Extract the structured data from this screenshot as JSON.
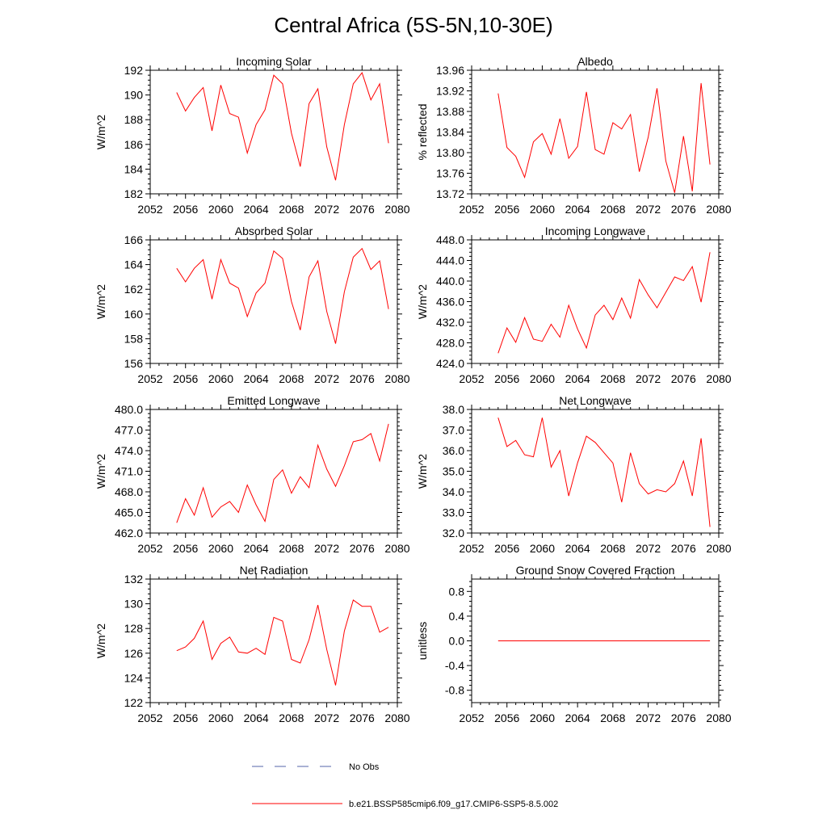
{
  "figure_title": "Central Africa (5S-5N,10-30E)",
  "colors": {
    "model": "#ff0000",
    "obs": "#5566aa",
    "axis": "#000000"
  },
  "legend": [
    {
      "label": "No Obs",
      "style": "dashed",
      "color": "#5566aa"
    },
    {
      "label": "b.e21.BSSP585cmip6.f09_g17.CMIP6-SSP5-8.5.002",
      "style": "solid",
      "color": "#ff0000"
    }
  ],
  "chart_data": [
    {
      "type": "line",
      "title": "Incoming Solar",
      "ylabel": "W/m^2",
      "xlim": [
        2052,
        2080
      ],
      "ylim": [
        182,
        192
      ],
      "xticks": [
        2052,
        2056,
        2060,
        2064,
        2068,
        2072,
        2076,
        2080
      ],
      "yticks": [
        182,
        184,
        186,
        188,
        190,
        192
      ],
      "ytick_labels": [
        "182",
        "184",
        "186",
        "188",
        "190",
        "192"
      ],
      "x": [
        2055,
        2056,
        2057,
        2058,
        2059,
        2060,
        2061,
        2062,
        2063,
        2064,
        2065,
        2066,
        2067,
        2068,
        2069,
        2070,
        2071,
        2072,
        2073,
        2074,
        2075,
        2076,
        2077,
        2078,
        2079
      ],
      "series": [
        {
          "values": [
            190.2,
            188.7,
            189.8,
            190.6,
            187.1,
            190.8,
            188.5,
            188.2,
            185.3,
            187.6,
            188.8,
            191.6,
            190.9,
            186.9,
            184.2,
            189.3,
            190.5,
            185.8,
            183.1,
            187.6,
            190.9,
            191.8,
            189.6,
            190.9,
            186.1
          ]
        }
      ]
    },
    {
      "type": "line",
      "title": "Albedo",
      "ylabel": "% reflected",
      "xlim": [
        2052,
        2080
      ],
      "ylim": [
        13.72,
        13.96
      ],
      "xticks": [
        2052,
        2056,
        2060,
        2064,
        2068,
        2072,
        2076,
        2080
      ],
      "yticks": [
        13.72,
        13.76,
        13.8,
        13.84,
        13.88,
        13.92,
        13.96
      ],
      "ytick_labels": [
        "13.72",
        "13.76",
        "13.80",
        "13.84",
        "13.88",
        "13.92",
        "13.96"
      ],
      "x": [
        2055,
        2056,
        2057,
        2058,
        2059,
        2060,
        2061,
        2062,
        2063,
        2064,
        2065,
        2066,
        2067,
        2068,
        2069,
        2070,
        2071,
        2072,
        2073,
        2074,
        2075,
        2076,
        2077,
        2078,
        2079
      ],
      "series": [
        {
          "values": [
            13.915,
            13.81,
            13.793,
            13.752,
            13.821,
            13.837,
            13.797,
            13.866,
            13.789,
            13.812,
            13.918,
            13.806,
            13.797,
            13.858,
            13.846,
            13.874,
            13.763,
            13.83,
            13.925,
            13.784,
            13.722,
            13.832,
            13.725,
            13.935,
            13.777
          ]
        }
      ]
    },
    {
      "type": "line",
      "title": "Absorbed Solar",
      "ylabel": "W/m^2",
      "xlim": [
        2052,
        2080
      ],
      "ylim": [
        156,
        166
      ],
      "xticks": [
        2052,
        2056,
        2060,
        2064,
        2068,
        2072,
        2076,
        2080
      ],
      "yticks": [
        156,
        158,
        160,
        162,
        164,
        166
      ],
      "ytick_labels": [
        "156",
        "158",
        "160",
        "162",
        "164",
        "166"
      ],
      "x": [
        2055,
        2056,
        2057,
        2058,
        2059,
        2060,
        2061,
        2062,
        2063,
        2064,
        2065,
        2066,
        2067,
        2068,
        2069,
        2070,
        2071,
        2072,
        2073,
        2074,
        2075,
        2076,
        2077,
        2078,
        2079
      ],
      "series": [
        {
          "values": [
            163.7,
            162.6,
            163.7,
            164.4,
            161.2,
            164.4,
            162.5,
            162.1,
            159.8,
            161.7,
            162.5,
            165.1,
            164.5,
            161.0,
            158.7,
            163.0,
            164.3,
            160.2,
            157.6,
            161.8,
            164.6,
            165.3,
            163.6,
            164.3,
            160.4
          ]
        }
      ]
    },
    {
      "type": "line",
      "title": "Incoming Longwave",
      "ylabel": "W/m^2",
      "xlim": [
        2052,
        2080
      ],
      "ylim": [
        424,
        448
      ],
      "xticks": [
        2052,
        2056,
        2060,
        2064,
        2068,
        2072,
        2076,
        2080
      ],
      "yticks": [
        424,
        428,
        432,
        436,
        440,
        444,
        448
      ],
      "ytick_labels": [
        "424.0",
        "428.0",
        "432.0",
        "436.0",
        "440.0",
        "444.0",
        "448.0"
      ],
      "x": [
        2055,
        2056,
        2057,
        2058,
        2059,
        2060,
        2061,
        2062,
        2063,
        2064,
        2065,
        2066,
        2067,
        2068,
        2069,
        2070,
        2071,
        2072,
        2073,
        2074,
        2075,
        2076,
        2077,
        2078,
        2079
      ],
      "series": [
        {
          "values": [
            426.0,
            430.9,
            428.1,
            432.9,
            428.7,
            428.3,
            431.6,
            429.1,
            435.3,
            430.7,
            427.0,
            433.4,
            435.3,
            432.5,
            436.7,
            432.8,
            440.3,
            437.3,
            434.8,
            437.8,
            440.8,
            440.1,
            442.8,
            435.9,
            445.6
          ]
        }
      ]
    },
    {
      "type": "line",
      "title": "Emitted Longwave",
      "ylabel": "W/m^2",
      "xlim": [
        2052,
        2080
      ],
      "ylim": [
        462,
        480
      ],
      "xticks": [
        2052,
        2056,
        2060,
        2064,
        2068,
        2072,
        2076,
        2080
      ],
      "yticks": [
        462,
        465,
        468,
        471,
        474,
        477,
        480
      ],
      "ytick_labels": [
        "462.0",
        "465.0",
        "468.0",
        "471.0",
        "474.0",
        "477.0",
        "480.0"
      ],
      "x": [
        2055,
        2056,
        2057,
        2058,
        2059,
        2060,
        2061,
        2062,
        2063,
        2064,
        2065,
        2066,
        2067,
        2068,
        2069,
        2070,
        2071,
        2072,
        2073,
        2074,
        2075,
        2076,
        2077,
        2078,
        2079
      ],
      "series": [
        {
          "values": [
            463.5,
            467.0,
            464.6,
            468.6,
            464.3,
            465.8,
            466.6,
            465.0,
            469.0,
            466.1,
            463.7,
            469.8,
            471.2,
            467.8,
            470.2,
            468.6,
            474.8,
            471.3,
            468.8,
            471.8,
            475.3,
            475.6,
            476.5,
            472.5,
            477.9
          ]
        }
      ]
    },
    {
      "type": "line",
      "title": "Net Longwave",
      "ylabel": "W/m^2",
      "xlim": [
        2052,
        2080
      ],
      "ylim": [
        32,
        38
      ],
      "xticks": [
        2052,
        2056,
        2060,
        2064,
        2068,
        2072,
        2076,
        2080
      ],
      "yticks": [
        32,
        33,
        34,
        35,
        36,
        37,
        38
      ],
      "ytick_labels": [
        "32.0",
        "33.0",
        "34.0",
        "35.0",
        "36.0",
        "37.0",
        "38.0"
      ],
      "x": [
        2055,
        2056,
        2057,
        2058,
        2059,
        2060,
        2061,
        2062,
        2063,
        2064,
        2065,
        2066,
        2067,
        2068,
        2069,
        2070,
        2071,
        2072,
        2073,
        2074,
        2075,
        2076,
        2077,
        2078,
        2079
      ],
      "series": [
        {
          "values": [
            37.6,
            36.2,
            36.5,
            35.8,
            35.7,
            37.6,
            35.2,
            36.0,
            33.8,
            35.4,
            36.7,
            36.4,
            35.9,
            35.4,
            33.5,
            35.9,
            34.4,
            33.9,
            34.1,
            34.0,
            34.4,
            35.5,
            33.8,
            36.6,
            32.3
          ]
        }
      ]
    },
    {
      "type": "line",
      "title": "Net Radiation",
      "ylabel": "W/m^2",
      "xlim": [
        2052,
        2080
      ],
      "ylim": [
        122,
        132
      ],
      "xticks": [
        2052,
        2056,
        2060,
        2064,
        2068,
        2072,
        2076,
        2080
      ],
      "yticks": [
        122,
        124,
        126,
        128,
        130,
        132
      ],
      "ytick_labels": [
        "122",
        "124",
        "126",
        "128",
        "130",
        "132"
      ],
      "x": [
        2055,
        2056,
        2057,
        2058,
        2059,
        2060,
        2061,
        2062,
        2063,
        2064,
        2065,
        2066,
        2067,
        2068,
        2069,
        2070,
        2071,
        2072,
        2073,
        2074,
        2075,
        2076,
        2077,
        2078,
        2079
      ],
      "series": [
        {
          "values": [
            126.2,
            126.5,
            127.2,
            128.6,
            125.5,
            126.8,
            127.3,
            126.1,
            126.0,
            126.4,
            125.9,
            128.9,
            128.6,
            125.5,
            125.2,
            127.1,
            129.9,
            126.3,
            123.4,
            127.8,
            130.3,
            129.8,
            129.8,
            127.7,
            128.1
          ]
        }
      ]
    },
    {
      "type": "line",
      "title": "Ground Snow Covered Fraction",
      "ylabel": "unitless",
      "xlim": [
        2052,
        2080
      ],
      "ylim": [
        -1.0,
        1.0
      ],
      "xticks": [
        2052,
        2056,
        2060,
        2064,
        2068,
        2072,
        2076,
        2080
      ],
      "yticks": [
        -0.8,
        -0.4,
        0.0,
        0.4,
        0.8
      ],
      "ytick_labels": [
        "-0.8",
        "-0.4",
        "0.0",
        "0.4",
        "0.8"
      ],
      "x": [
        2055,
        2056,
        2057,
        2058,
        2059,
        2060,
        2061,
        2062,
        2063,
        2064,
        2065,
        2066,
        2067,
        2068,
        2069,
        2070,
        2071,
        2072,
        2073,
        2074,
        2075,
        2076,
        2077,
        2078,
        2079
      ],
      "series": [
        {
          "values": [
            0,
            0,
            0,
            0,
            0,
            0,
            0,
            0,
            0,
            0,
            0,
            0,
            0,
            0,
            0,
            0,
            0,
            0,
            0,
            0,
            0,
            0,
            0,
            0,
            0
          ]
        }
      ]
    }
  ]
}
